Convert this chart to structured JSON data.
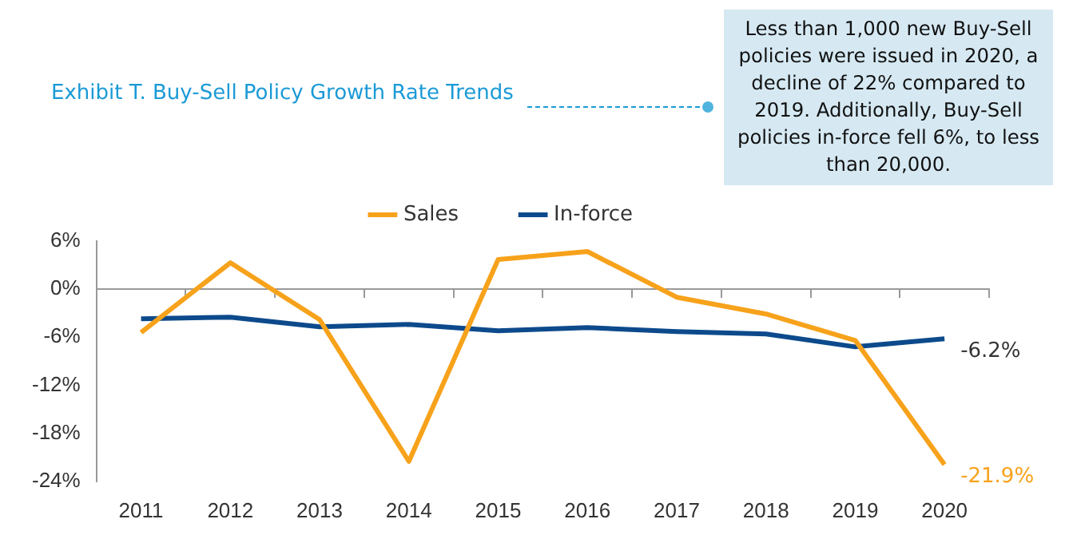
{
  "chart_data": {
    "type": "line",
    "title": "Exhibit T. Buy-Sell Policy Growth Rate Trends",
    "annotations": [
      "Less than 1,000 new Buy-Sell policies were issued in 2020, a decline of 22% compared to 2019. Additionally, Buy-Sell policies in-force fell 6%, to less than 20,000."
    ],
    "categories": [
      "2011",
      "2012",
      "2013",
      "2014",
      "2015",
      "2016",
      "2017",
      "2018",
      "2019",
      "2020"
    ],
    "series": [
      {
        "name": "Sales",
        "color": "#f7a21b",
        "values": [
          -5.4,
          3.3,
          -3.8,
          -21.5,
          3.7,
          4.7,
          -1.0,
          -3.1,
          -6.4,
          -21.9
        ],
        "value_labels": [
          null,
          null,
          null,
          null,
          null,
          null,
          null,
          null,
          null,
          "-21.9%"
        ]
      },
      {
        "name": "In-force",
        "color": "#0d4a8c",
        "values": [
          -3.7,
          -3.5,
          -4.7,
          -4.4,
          -5.2,
          -4.8,
          -5.3,
          -5.6,
          -7.2,
          -6.2
        ],
        "value_labels": [
          null,
          null,
          null,
          null,
          null,
          null,
          null,
          null,
          null,
          "-6.2%"
        ]
      }
    ],
    "ylim": [
      -24,
      6
    ],
    "yticks": [
      {
        "value": -24,
        "label": "-24%"
      },
      {
        "value": -18,
        "label": "-18%"
      },
      {
        "value": -12,
        "label": "-12%"
      },
      {
        "value": -6,
        "label": "-6%"
      },
      {
        "value": 0,
        "label": "0%"
      },
      {
        "value": 6,
        "label": "6%"
      }
    ],
    "legend": "top",
    "marker": "none",
    "line_style": "solid"
  }
}
